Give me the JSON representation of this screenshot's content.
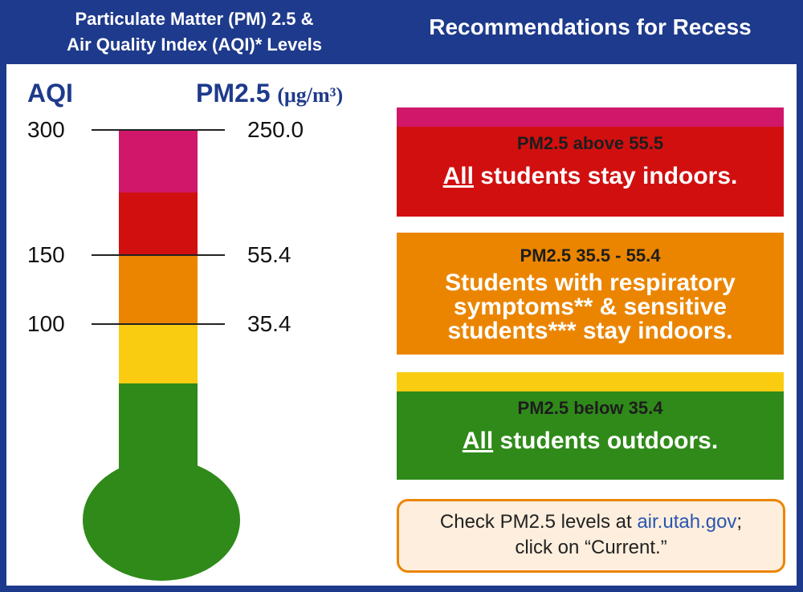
{
  "header": {
    "left_line1": "Particulate Matter (PM) 2.5 &",
    "left_line2": "Air Quality Index (AQI)* Levels",
    "right": "Recommendations for Recess"
  },
  "scale": {
    "aqi_label": "AQI",
    "pm_label": "PM2.5",
    "pm_unit": "(μg/m³)",
    "ticks": [
      {
        "aqi": "300",
        "pm": "250.0"
      },
      {
        "aqi": "150",
        "pm": "55.4"
      },
      {
        "aqi": "100",
        "pm": "35.4"
      }
    ]
  },
  "colors": {
    "magenta": "#d0176a",
    "red": "#d10f0f",
    "orange": "#eb8500",
    "yellow": "#f9cc11",
    "green": "#2f8a19",
    "header_blue": "#1e3a8c"
  },
  "recommendations": [
    {
      "level": "red",
      "title": "PM2.5 above 55.5",
      "underline": "All",
      "message": " students stay indoors."
    },
    {
      "level": "orange",
      "title": "PM2.5 35.5 - 55.4",
      "message_lines": [
        "Students with respiratory",
        "symptoms** & sensitive",
        "students*** stay indoors."
      ]
    },
    {
      "level": "green",
      "title": "PM2.5 below 35.4",
      "underline": "All",
      "message": " students outdoors."
    }
  ],
  "note": {
    "prefix": "Check PM2.5 levels at ",
    "link": "air.utah.gov",
    "suffix": ";",
    "line2": "click on “Current.”"
  }
}
